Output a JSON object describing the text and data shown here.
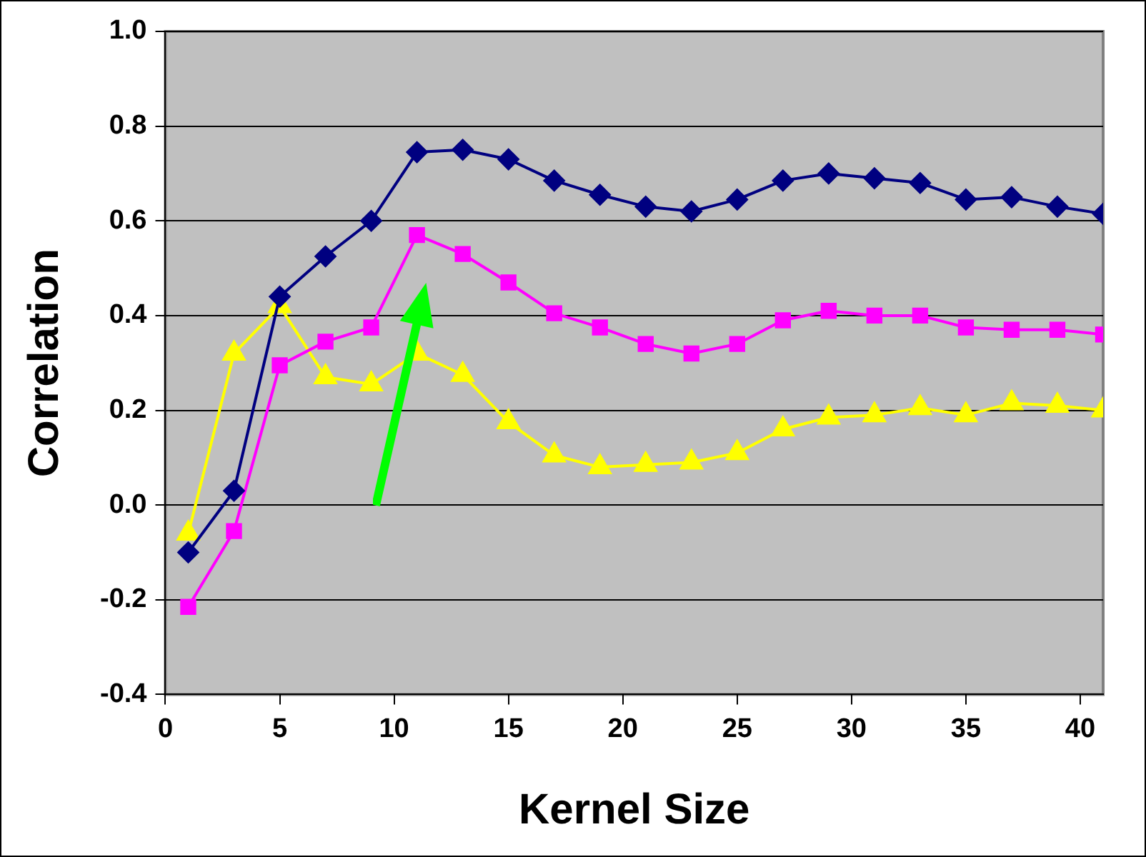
{
  "chart_data": {
    "type": "line",
    "xlabel": "Kernel Size",
    "ylabel": "Correlation",
    "x": [
      1,
      3,
      5,
      7,
      9,
      11,
      13,
      15,
      17,
      19,
      21,
      23,
      25,
      27,
      29,
      31,
      33,
      35,
      37,
      39,
      41
    ],
    "series": [
      {
        "color": "#000080",
        "marker": "diamond",
        "values": [
          -0.1,
          0.03,
          0.44,
          0.525,
          0.6,
          0.745,
          0.75,
          0.73,
          0.685,
          0.655,
          0.63,
          0.62,
          0.645,
          0.685,
          0.7,
          0.69,
          0.68,
          0.645,
          0.65,
          0.63,
          0.615
        ]
      },
      {
        "color": "#ff00ff",
        "marker": "square",
        "values": [
          -0.215,
          -0.055,
          0.295,
          0.345,
          0.375,
          0.57,
          0.53,
          0.47,
          0.405,
          0.375,
          0.34,
          0.32,
          0.34,
          0.39,
          0.41,
          0.4,
          0.4,
          0.375,
          0.37,
          0.37,
          0.36
        ]
      },
      {
        "color": "#ffff00",
        "marker": "triangle",
        "values": [
          -0.06,
          0.32,
          0.42,
          0.27,
          0.255,
          0.32,
          0.275,
          0.175,
          0.105,
          0.08,
          0.085,
          0.09,
          0.11,
          0.16,
          0.185,
          0.19,
          0.205,
          0.19,
          0.215,
          0.21,
          0.2
        ]
      }
    ],
    "xlim": [
      0,
      41
    ],
    "xticks": [
      0,
      5,
      10,
      15,
      20,
      25,
      30,
      35,
      40
    ],
    "ylim": [
      -0.4,
      1.0
    ],
    "yticks": [
      {
        "value": -0.4,
        "label": "-0.4"
      },
      {
        "value": -0.2,
        "label": "-0.2"
      },
      {
        "value": 0,
        "label": "0.0"
      },
      {
        "value": 0.2,
        "label": "0.2"
      },
      {
        "value": 0.4,
        "label": "0.4"
      },
      {
        "value": 0.6,
        "label": "0.6"
      },
      {
        "value": 0.8,
        "label": "0.8"
      },
      {
        "value": 1.0,
        "label": "1.0"
      }
    ],
    "grid": "y",
    "legend": false
  }
}
